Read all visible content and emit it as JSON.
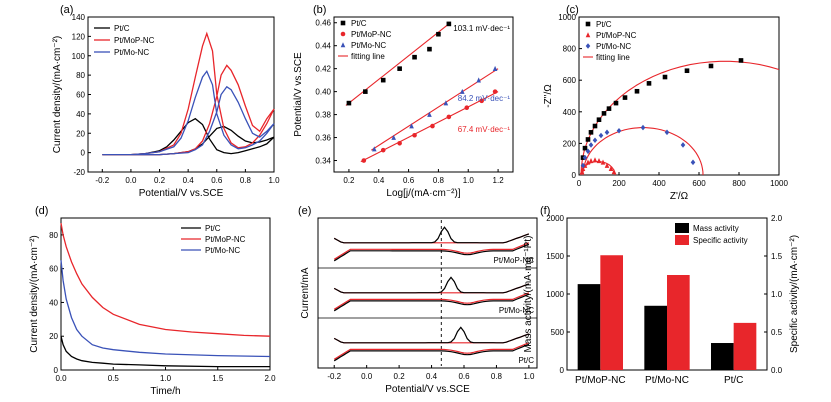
{
  "colors": {
    "black": "#000000",
    "red": "#e8262b",
    "blue": "#3a52b8"
  },
  "chart_data": [
    {
      "panel_label": "(a)",
      "type": "line",
      "xlabel": "Potential/V vs.SCE",
      "ylabel": "Current density/(mA·cm⁻²)",
      "xlim": [
        -0.3,
        1.0
      ],
      "ylim": [
        -20,
        140
      ],
      "xticks": [
        -0.2,
        0.0,
        0.2,
        0.4,
        0.6,
        0.8,
        1.0
      ],
      "xtick_labels": [
        "-0.2",
        "0.0",
        "0.2",
        "0.4",
        "0.6",
        "0.8",
        "1.0"
      ],
      "yticks": [
        -20,
        0,
        20,
        40,
        60,
        80,
        100,
        120,
        140
      ],
      "ytick_labels": [
        "-20",
        "0",
        "20",
        "40",
        "60",
        "80",
        "100",
        "120",
        "140"
      ],
      "legend_position": "top-left",
      "series": [
        {
          "name": "Pt/C",
          "color": "#000000",
          "x": [
            -0.2,
            0.0,
            0.1,
            0.2,
            0.25,
            0.3,
            0.35,
            0.4,
            0.45,
            0.5,
            0.55,
            0.6,
            0.65,
            0.7,
            0.75,
            0.8,
            0.85,
            0.9,
            0.95,
            1.0,
            0.95,
            0.9,
            0.85,
            0.8,
            0.75,
            0.7,
            0.65,
            0.6,
            0.55,
            0.5,
            0.45,
            0.4,
            0.3,
            0.2,
            0.1,
            0.0,
            -0.2
          ],
          "y": [
            -2,
            -2,
            -1,
            2,
            6,
            13,
            22,
            31,
            35,
            29,
            14,
            3,
            0,
            -1,
            0,
            2,
            4,
            6,
            9,
            16,
            13,
            11,
            10,
            12,
            17,
            23,
            27,
            25,
            17,
            9,
            4,
            1,
            -1,
            -2,
            -2,
            -2,
            -2
          ]
        },
        {
          "name": "Pt/MoP-NC",
          "color": "#e8262b",
          "x": [
            -0.2,
            0.0,
            0.1,
            0.2,
            0.3,
            0.35,
            0.4,
            0.45,
            0.5,
            0.53,
            0.57,
            0.6,
            0.65,
            0.7,
            0.75,
            0.8,
            0.85,
            0.9,
            0.95,
            1.0,
            0.95,
            0.9,
            0.85,
            0.8,
            0.75,
            0.7,
            0.67,
            0.63,
            0.6,
            0.55,
            0.5,
            0.45,
            0.4,
            0.3,
            0.2,
            0.1,
            0.0,
            -0.2
          ],
          "y": [
            -2,
            -2,
            -1,
            1,
            8,
            20,
            45,
            78,
            110,
            123,
            105,
            60,
            25,
            10,
            5,
            6,
            10,
            18,
            30,
            45,
            35,
            22,
            28,
            48,
            70,
            85,
            90,
            80,
            58,
            30,
            12,
            4,
            1,
            -1,
            -2,
            -2,
            -2,
            -2
          ]
        },
        {
          "name": "Pt/Mo-NC",
          "color": "#3a52b8",
          "x": [
            -0.2,
            0.0,
            0.1,
            0.2,
            0.3,
            0.35,
            0.4,
            0.45,
            0.5,
            0.53,
            0.57,
            0.6,
            0.65,
            0.7,
            0.75,
            0.8,
            0.85,
            0.9,
            0.95,
            1.0,
            0.95,
            0.9,
            0.85,
            0.8,
            0.75,
            0.7,
            0.67,
            0.63,
            0.6,
            0.55,
            0.5,
            0.45,
            0.4,
            0.3,
            0.2,
            0.1,
            0.0,
            -0.2
          ],
          "y": [
            -2,
            -2,
            -1,
            1,
            6,
            15,
            33,
            57,
            78,
            84,
            70,
            40,
            18,
            8,
            4,
            5,
            8,
            12,
            20,
            30,
            22,
            16,
            20,
            35,
            52,
            65,
            68,
            60,
            42,
            22,
            8,
            3,
            0,
            -1,
            -2,
            -2,
            -2,
            -2
          ]
        }
      ]
    },
    {
      "panel_label": "(b)",
      "type": "scatter",
      "xlabel": "Log[j/(mA·cm⁻²)]",
      "ylabel": "Potential/V vs.SCE",
      "xlim": [
        0.1,
        1.3
      ],
      "ylim": [
        0.33,
        0.465
      ],
      "xticks": [
        0.2,
        0.4,
        0.6,
        0.8,
        1.0,
        1.2
      ],
      "xtick_labels": [
        "0.2",
        "0.4",
        "0.6",
        "0.8",
        "1.0",
        "1.2"
      ],
      "yticks": [
        0.34,
        0.36,
        0.38,
        0.4,
        0.42,
        0.44,
        0.46
      ],
      "ytick_labels": [
        "0.34",
        "0.36",
        "0.38",
        "0.40",
        "0.42",
        "0.44",
        "0.46"
      ],
      "legend_position": "top-left",
      "fitting_line_label": "fitting line",
      "annotations": [
        "103.1 mV·dec⁻¹",
        "84.2 mV·dec⁻¹",
        "67.4 mV·dec⁻¹"
      ],
      "series": [
        {
          "name": "Pt/C",
          "color": "#000000",
          "marker": "square",
          "x": [
            0.2,
            0.31,
            0.43,
            0.54,
            0.64,
            0.74,
            0.8,
            0.87
          ],
          "y": [
            0.39,
            0.4,
            0.41,
            0.42,
            0.43,
            0.437,
            0.45,
            0.459
          ],
          "fit": [
            [
              0.18,
              0.388
            ],
            [
              0.88,
              0.46
            ]
          ]
        },
        {
          "name": "Pt/MoP-NC",
          "color": "#e8262b",
          "marker": "circle",
          "x": [
            0.3,
            0.43,
            0.54,
            0.64,
            0.76,
            0.87,
            0.99,
            1.09,
            1.18
          ],
          "y": [
            0.34,
            0.349,
            0.355,
            0.362,
            0.37,
            0.378,
            0.386,
            0.392,
            0.4
          ],
          "fit": [
            [
              0.28,
              0.339
            ],
            [
              1.2,
              0.4
            ]
          ]
        },
        {
          "name": "Pt/Mo-NC",
          "color": "#3a52b8",
          "marker": "triangle",
          "x": [
            0.37,
            0.5,
            0.62,
            0.74,
            0.85,
            0.96,
            1.07,
            1.18
          ],
          "y": [
            0.35,
            0.36,
            0.37,
            0.38,
            0.39,
            0.4,
            0.41,
            0.42
          ],
          "fit": [
            [
              0.35,
              0.349
            ],
            [
              1.2,
              0.42
            ]
          ]
        }
      ]
    },
    {
      "panel_label": "(c)",
      "type": "scatter",
      "xlabel": "Z'/Ω",
      "ylabel": "-Z''/Ω",
      "xlim": [
        0,
        1000
      ],
      "ylim": [
        0,
        1000
      ],
      "xticks": [
        0,
        200,
        400,
        600,
        800,
        1000
      ],
      "xtick_labels": [
        "0",
        "200",
        "400",
        "600",
        "800",
        "1000"
      ],
      "yticks": [
        0,
        200,
        400,
        600,
        800,
        1000
      ],
      "ytick_labels": [
        "0",
        "200",
        "400",
        "600",
        "800",
        "1000"
      ],
      "legend_position": "top-left",
      "fitting_line_label": "fitting line",
      "series": [
        {
          "name": "Pt/C",
          "color": "#000000",
          "marker": "square",
          "x": [
            20,
            30,
            45,
            60,
            80,
            100,
            125,
            150,
            185,
            230,
            290,
            350,
            430,
            540,
            660,
            810
          ],
          "y": [
            110,
            170,
            225,
            270,
            310,
            350,
            390,
            420,
            455,
            490,
            530,
            580,
            620,
            660,
            690,
            725
          ],
          "fit_arc": {
            "center": [
              730,
              0
            ],
            "radius": 720
          }
        },
        {
          "name": "Pt/MoP-NC",
          "color": "#e8262b",
          "marker": "triangle",
          "x": [
            15,
            20,
            30,
            45,
            60,
            80,
            100,
            120,
            140,
            160,
            175
          ],
          "y": [
            20,
            40,
            60,
            80,
            90,
            95,
            90,
            80,
            60,
            40,
            20
          ],
          "fit_arc": {
            "center": [
              95,
              0
            ],
            "radius": 85
          }
        },
        {
          "name": "Pt/Mo-NC",
          "color": "#3a52b8",
          "marker": "diamond",
          "x": [
            20,
            30,
            45,
            60,
            80,
            110,
            140,
            200,
            320,
            440,
            520,
            570
          ],
          "y": [
            60,
            110,
            150,
            190,
            220,
            250,
            270,
            280,
            300,
            270,
            190,
            80
          ],
          "fit_arc": {
            "center": [
              320,
              0
            ],
            "radius": 300
          }
        }
      ]
    },
    {
      "panel_label": "(d)",
      "type": "line",
      "xlabel": "Time/h",
      "ylabel": "Current density/(mA·cm⁻²)",
      "xlim": [
        0,
        2.0
      ],
      "ylim": [
        0,
        90
      ],
      "xticks": [
        0.0,
        0.5,
        1.0,
        1.5,
        2.0
      ],
      "xtick_labels": [
        "0.0",
        "0.5",
        "1.0",
        "1.5",
        "2.0"
      ],
      "yticks": [
        0,
        20,
        40,
        60,
        80
      ],
      "ytick_labels": [
        "0",
        "20",
        "40",
        "60",
        "80"
      ],
      "legend_position": "top-right",
      "series": [
        {
          "name": "Pt/C",
          "color": "#000000",
          "x": [
            0,
            0.02,
            0.05,
            0.1,
            0.15,
            0.2,
            0.3,
            0.4,
            0.5,
            0.75,
            1.0,
            1.5,
            2.0
          ],
          "y": [
            20,
            15,
            11,
            8,
            6.5,
            5.5,
            4.5,
            4,
            3.5,
            3,
            2.5,
            2,
            2
          ]
        },
        {
          "name": "Pt/MoP-NC",
          "color": "#e8262b",
          "x": [
            0,
            0.02,
            0.05,
            0.1,
            0.15,
            0.2,
            0.3,
            0.4,
            0.5,
            0.75,
            1.0,
            1.25,
            1.5,
            1.75,
            2.0
          ],
          "y": [
            87,
            80,
            73,
            64,
            57,
            51,
            43,
            37,
            33,
            27,
            24,
            22.5,
            21.5,
            20.5,
            20
          ]
        },
        {
          "name": "Pt/Mo-NC",
          "color": "#3a52b8",
          "x": [
            0,
            0.02,
            0.05,
            0.1,
            0.15,
            0.2,
            0.3,
            0.4,
            0.5,
            0.75,
            1.0,
            1.5,
            2.0
          ],
          "y": [
            65,
            53,
            42,
            31,
            24,
            20,
            15,
            13,
            12,
            10.5,
            9.5,
            8.5,
            8
          ]
        }
      ]
    },
    {
      "panel_label": "(e)",
      "type": "line",
      "xlabel": "Potential/V vs.SCE",
      "ylabel": "Current/mA",
      "xlim": [
        -0.3,
        1.05
      ],
      "xticks": [
        -0.2,
        0.0,
        0.2,
        0.4,
        0.6,
        0.8,
        1.0
      ],
      "xtick_labels": [
        "-0.2",
        "0.0",
        "0.2",
        "0.4",
        "0.6",
        "0.8",
        "1.0"
      ],
      "reference_line_x": 0.46,
      "subpanel_labels": [
        "Pt/MoP-NC",
        "Pt/Mo-NC",
        "Pt/C"
      ],
      "subpanel_peak_x": [
        0.48,
        0.52,
        0.58
      ],
      "series_colors": [
        "#e8262b",
        "#000000"
      ]
    },
    {
      "panel_label": "(f)",
      "type": "bar",
      "categories": [
        "Pt/MoP-NC",
        "Pt/Mo-NC",
        "Pt/C"
      ],
      "ylabel": "Mass activity/(mA·mg⁻¹Pt)",
      "y2label": "Specific activity/(mA·cm⁻²)",
      "ylim": [
        0,
        2000
      ],
      "y2lim": [
        0,
        2.0
      ],
      "yticks": [
        0,
        500,
        1000,
        1500,
        2000
      ],
      "ytick_labels": [
        "0",
        "500",
        "1000",
        "1500",
        "2000"
      ],
      "y2ticks": [
        0.0,
        0.5,
        1.0,
        1.5,
        2.0
      ],
      "y2tick_labels": [
        "0.0",
        "0.5",
        "1.0",
        "1.5",
        "2.0"
      ],
      "legend_position": "top-right",
      "series": [
        {
          "name": "Mass activity",
          "color": "#000000",
          "axis": "left",
          "values": [
            1130,
            845,
            355
          ]
        },
        {
          "name": "Specific activity",
          "color": "#e8262b",
          "axis": "right",
          "values": [
            1.51,
            1.25,
            0.62
          ]
        }
      ]
    }
  ]
}
